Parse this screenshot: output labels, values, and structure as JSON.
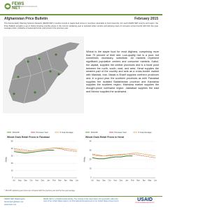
{
  "header": {
    "logo": "FEWS NET",
    "tagline": "FAMINE EARLY WARNING SYSTEMS NETWORK",
    "title": "Afghanistan Price Bulletin",
    "date": "February 2015"
  },
  "intro": "The Famine Early Warning Systems Network (FEWS NET) monitors trends in staple food prices in countries vulnerable to food insecurity. For each FEWS NET country and region, the Price Bulletin provides a set of charts showing monthly prices in the current marketing year in selected urban centers and allowing users to compare current trends with both five-year average prices, indicative of seasonal trends, and prices in the previous year.",
  "description": "Wheat is the staple food for most Afghans, comprising more than 70 percent of their diet. Low-quality rice is a poor, but sometimes necessary, substitute. All markets represent significant population centers and consumer markets. Kabul, the capital, supplies the central provinces and is a trade point between the north, south, east, and west. Herat supplies the western part of the country and acts as a cross-border market with Mashad, Iran. Mazar-e-Sharif supplies northern provinces and, in a good year, the southern provinces as well. Faizabad supplies the isolated Badakhshan province and Kandahar supplies the southern region. Maimana market supplies the drought-prone northwest region. Jalalabad supplies the east and Nimroz supplies the southwest.",
  "chart_data": [
    {
      "type": "line",
      "title": "Wheat Grain Retail Prices in Faizabad",
      "y_label": "Afs/kg",
      "categories": [
        "Jul",
        "Aug",
        "Sep",
        "Oct",
        "Nov",
        "Dec",
        "Jan",
        "Feb",
        "Mar",
        "Apr",
        "May",
        "Jun"
      ],
      "series": [
        {
          "name": "2014/15",
          "color": "#3a7d2c",
          "values": [
            36,
            35,
            34,
            35,
            36,
            37,
            38,
            38,
            null,
            null,
            null,
            null
          ]
        },
        {
          "name": "Previous Year",
          "color": "#c0392b",
          "values": [
            40,
            39,
            38,
            37,
            38,
            39,
            40,
            41,
            40,
            38,
            37,
            36
          ]
        },
        {
          "name": "5 Year Average",
          "color": "#e6a23c",
          "values": [
            38,
            37,
            36,
            37,
            38,
            39,
            40,
            41,
            41,
            40,
            39,
            38
          ]
        }
      ],
      "ylim": [
        0,
        50
      ],
      "yticks": [
        0,
        10,
        20,
        30,
        40,
        50
      ],
      "grid": true
    },
    {
      "type": "line",
      "title": "Wheat Grain Retail Prices in Herat",
      "y_label": "Afs/kg",
      "categories": [
        "Jul",
        "Aug",
        "Sep",
        "Oct",
        "Nov",
        "Dec",
        "Jan",
        "Feb",
        "Mar",
        "Apr",
        "May",
        "Jun"
      ],
      "series": [
        {
          "name": "2014/15",
          "color": "#3a7d2c",
          "values": [
            22,
            21,
            21,
            22,
            23,
            23,
            24,
            24,
            null,
            null,
            null,
            null
          ]
        },
        {
          "name": "Previous Year",
          "color": "#c0392b",
          "values": [
            26,
            25,
            24,
            24,
            25,
            25,
            26,
            26,
            25,
            24,
            23,
            22
          ]
        },
        {
          "name": "5 Year Average",
          "color": "#e6a23c",
          "values": [
            25,
            24,
            24,
            25,
            25,
            26,
            26,
            27,
            27,
            26,
            25,
            24
          ]
        }
      ],
      "ylim": [
        0,
        40
      ],
      "yticks": [
        0,
        10,
        20,
        30,
        40
      ],
      "grid": true
    }
  ],
  "footnote": "* 2014/15 marketing year prices are compared with the previous year and the five-year average.",
  "footer": {
    "org": "FEWS NET Washington",
    "email": "fewsinquiry@fews.net",
    "web": "www.fews.net",
    "disclaimer": "FEWS NET is a USAID-funded activity. The content of this report does not necessarily reflect the view of the United States Agency for International Development or the United States Government.",
    "usaid": "USAID",
    "usaid_sub": "FROM THE AMERICAN PEOPLE"
  }
}
